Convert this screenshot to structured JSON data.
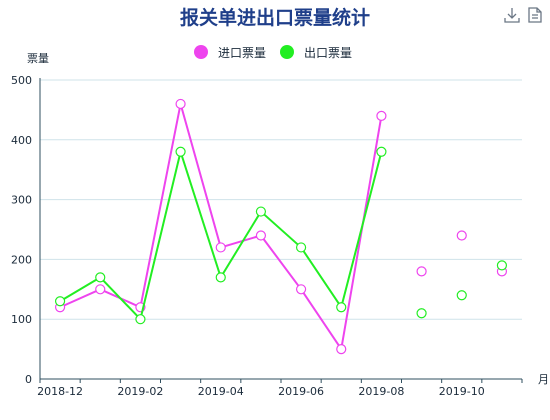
{
  "chart_data": {
    "type": "line",
    "title": "报关单进出口票量统计",
    "ylabel": "票量",
    "xlabel": "月",
    "ylim": [
      0,
      500
    ],
    "yticks": [
      0,
      100,
      200,
      300,
      400,
      500
    ],
    "categories": [
      "2018-12",
      "2019-01",
      "2019-02",
      "2019-03",
      "2019-04",
      "2019-05",
      "2019-06",
      "2019-07",
      "2019-08",
      "2019-09",
      "2019-10",
      "2019-11"
    ],
    "xtick_labels": [
      "2018-12",
      "2019-02",
      "2019-04",
      "2019-06",
      "2019-08",
      "2019-10"
    ],
    "legend_position": "top-center",
    "grid": true,
    "series": [
      {
        "name": "进口票量",
        "color": "#ee44ee",
        "values": [
          120,
          150,
          120,
          460,
          220,
          240,
          150,
          50,
          440,
          180,
          240,
          180
        ],
        "line_until": 8
      },
      {
        "name": "出口票量",
        "color": "#22ee22",
        "values": [
          130,
          170,
          100,
          380,
          170,
          280,
          220,
          120,
          380,
          110,
          140,
          190
        ],
        "line_until": 8
      }
    ]
  },
  "toolbar": {
    "icons": [
      "download-icon",
      "data-view-icon"
    ]
  }
}
